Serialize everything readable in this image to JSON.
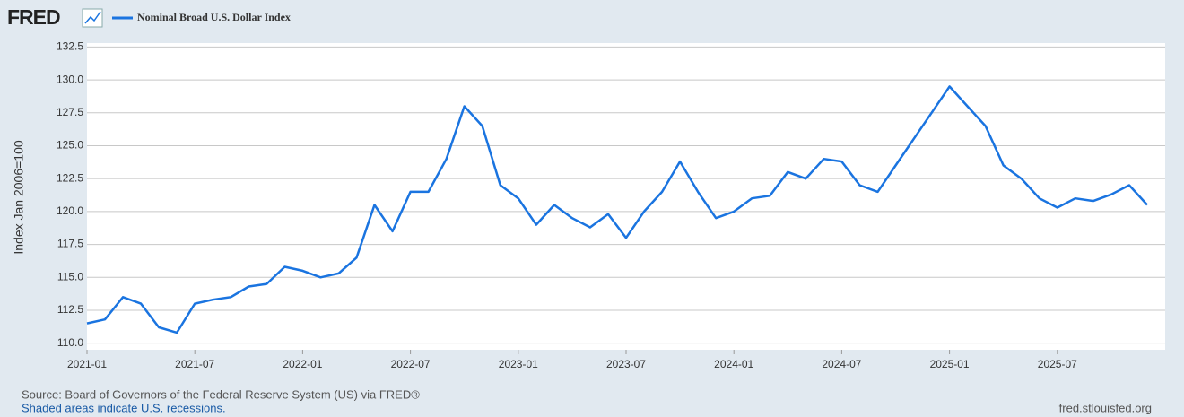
{
  "chart_data": {
    "type": "line",
    "logo": "FRED",
    "ylabel": "Index Jan 2006=100",
    "source": "Source: Board of Governors of the Federal Reserve System (US) via FRED®",
    "note": "Shaded areas indicate U.S. recessions.",
    "site": "fred.stlouisfed.org",
    "x": [
      "2021-01",
      "2021-02",
      "2021-03",
      "2021-04",
      "2021-05",
      "2021-06",
      "2021-07",
      "2021-08",
      "2021-09",
      "2021-10",
      "2021-11",
      "2021-12",
      "2022-01",
      "2022-02",
      "2022-03",
      "2022-04",
      "2022-05",
      "2022-06",
      "2022-07",
      "2022-08",
      "2022-09",
      "2022-10",
      "2022-11",
      "2022-12",
      "2023-01",
      "2023-02",
      "2023-03",
      "2023-04",
      "2023-05",
      "2023-06",
      "2023-07",
      "2023-08",
      "2023-09",
      "2023-10",
      "2023-11",
      "2023-12",
      "2024-01",
      "2024-02",
      "2024-03",
      "2024-04",
      "2024-05",
      "2024-06",
      "2024-07",
      "2024-08",
      "2024-09",
      "2024-10",
      "2024-11",
      "2024-12",
      "2025-01",
      "2025-02",
      "2025-03",
      "2025-04",
      "2025-05",
      "2025-06",
      "2025-07",
      "2025-08",
      "2025-09",
      "2025-10",
      "2025-11",
      "2025-12"
    ],
    "series": [
      {
        "name": "Nominal Broad U.S. Dollar Index",
        "color": "#1a74e0",
        "values": [
          111.5,
          111.8,
          113.5,
          113.0,
          111.2,
          110.8,
          113.0,
          113.3,
          113.5,
          114.3,
          114.5,
          115.8,
          115.5,
          115.0,
          115.3,
          116.5,
          120.5,
          118.5,
          121.5,
          121.5,
          124.0,
          128.0,
          126.5,
          122.0,
          121.0,
          119.0,
          120.5,
          119.5,
          118.8,
          119.8,
          118.0,
          120.0,
          121.5,
          123.8,
          121.5,
          119.5,
          120.0,
          121.0,
          121.2,
          123.0,
          122.5,
          124.0,
          123.8,
          122.0,
          121.5,
          123.5,
          125.5,
          127.5,
          129.5,
          128.0,
          126.5,
          123.5,
          122.5,
          121.0,
          120.3,
          121.0,
          120.8,
          121.3,
          122.0,
          120.5
        ]
      }
    ],
    "xlim": [
      "2021-01",
      "2026-01"
    ],
    "xticks": [
      "2021-01",
      "2021-07",
      "2022-01",
      "2022-07",
      "2023-01",
      "2023-07",
      "2024-01",
      "2024-07",
      "2025-01",
      "2025-07"
    ],
    "ylim": [
      109.5,
      132.8
    ],
    "yticks": [
      {
        "value": 110,
        "label": "110.0"
      },
      112.5,
      {
        "value": 115,
        "label": "115.0"
      },
      117.5,
      {
        "value": 120,
        "label": "120.0"
      },
      122.5,
      {
        "value": 125,
        "label": "125.0"
      },
      127.5,
      {
        "value": 130,
        "label": "130.0"
      },
      132.5
    ],
    "grid": true
  }
}
